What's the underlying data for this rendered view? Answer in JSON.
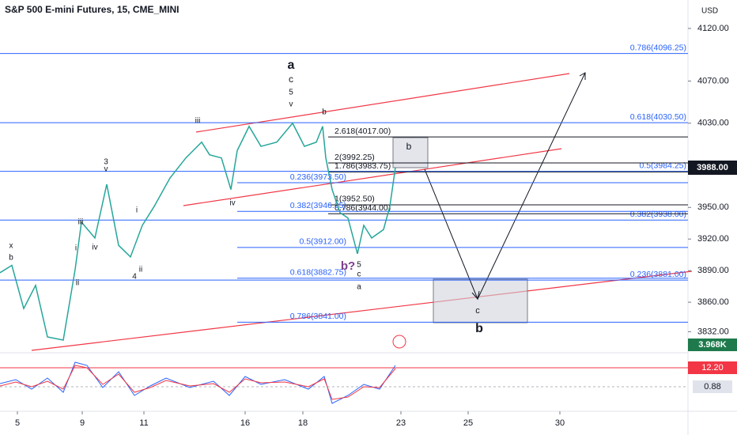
{
  "chart_data": {
    "type": "line",
    "title": "S&P 500 E-mini Futures, 15, CME_MINI",
    "y_label": "USD",
    "color": "#26a69a",
    "x": [
      0,
      1.5,
      3,
      4.5,
      6,
      8,
      9.5,
      10.3,
      12,
      13.5,
      15,
      16.5,
      18,
      19.5,
      21.5,
      23.5,
      25.5,
      26.5,
      28,
      29.2,
      30,
      31.5,
      33,
      35,
      37,
      38.5,
      40,
      40.8,
      41.2,
      42,
      43,
      44,
      45.2,
      46,
      47,
      48.5,
      49.3,
      50
    ],
    "values": [
      3888,
      3895,
      3854,
      3876,
      3827,
      3824,
      3891,
      3936,
      3921,
      3972,
      3914,
      3903,
      3933,
      3951,
      3978,
      3997,
      4012,
      4000,
      3997,
      3967,
      4004,
      4027,
      4008,
      4012,
      4030,
      4008,
      4012,
      4027,
      3997,
      3967,
      3945,
      3940,
      3906,
      3933,
      3921,
      3929,
      3951,
      3988
    ],
    "xlim": [
      0,
      87
    ],
    "xticks": [
      {
        "value": 2.2,
        "label": "5"
      },
      {
        "value": 10.4,
        "label": "9"
      },
      {
        "value": 18.2,
        "label": "11"
      },
      {
        "value": 31,
        "label": "16"
      },
      {
        "value": 38.3,
        "label": "18"
      },
      {
        "value": 50.7,
        "label": "23"
      },
      {
        "value": 59.2,
        "label": "25"
      },
      {
        "value": 70.8,
        "label": "30"
      }
    ],
    "ylim": [
      3812,
      4147
    ],
    "yticks": [
      {
        "value": 4120,
        "label": "4120.00"
      },
      {
        "value": 4070,
        "label": "4070.00"
      },
      {
        "value": 4030,
        "label": "4030.00"
      },
      {
        "value": 3950,
        "label": "3950.00"
      },
      {
        "value": 3920,
        "label": "3920.00"
      },
      {
        "value": 3890,
        "label": "3890.00"
      },
      {
        "value": 3860,
        "label": "3860.00"
      },
      {
        "value": 3832,
        "label": "3832.00"
      }
    ],
    "last_price": {
      "value": 3988,
      "label": "3988.00"
    },
    "fib_groups": [
      {
        "levels": [
          {
            "value": 4096.25,
            "label": "0.786(4096.25)"
          },
          {
            "value": 4030.5,
            "label": "0.618(4030.50)"
          },
          {
            "value": 3984.25,
            "label": "0.5(3984.25)"
          },
          {
            "value": 3938,
            "label": "0.382(3938.00)"
          },
          {
            "value": 3881,
            "label": "0.236(3881.00)"
          }
        ]
      },
      {
        "levels": [
          {
            "value": 4017,
            "label": "2.618(4017.00)"
          },
          {
            "value": 3992.25,
            "label": "2(3992.25)"
          },
          {
            "value": 3983.75,
            "label": "1.786(3983.75)"
          },
          {
            "value": 3952.5,
            "label": "1(3952.50)"
          },
          {
            "value": 3944,
            "label": "0.786(3944.00)"
          }
        ]
      },
      {
        "levels": [
          {
            "value": 3973.5,
            "label": "0.236(3973.50)"
          },
          {
            "value": 3946.25,
            "label": "0.382(3946.25)"
          },
          {
            "value": 3912,
            "label": "0.5(3912.00)"
          },
          {
            "value": 3882.75,
            "label": "0.618(3882.75)"
          },
          {
            "value": 3841,
            "label": "0.786(3841.00)"
          }
        ]
      }
    ],
    "wave_labels": [
      "a",
      "c",
      "5",
      "v",
      "b",
      "iii",
      "3",
      "v",
      "i",
      "iii",
      "i",
      "iv",
      "ii",
      "ii",
      "4",
      "x",
      "b",
      "iv",
      "b?",
      "5",
      "c",
      "a",
      "b",
      "c",
      "b"
    ],
    "indicator_labels": [
      "3.968K",
      "12.20",
      "0.88"
    ]
  }
}
